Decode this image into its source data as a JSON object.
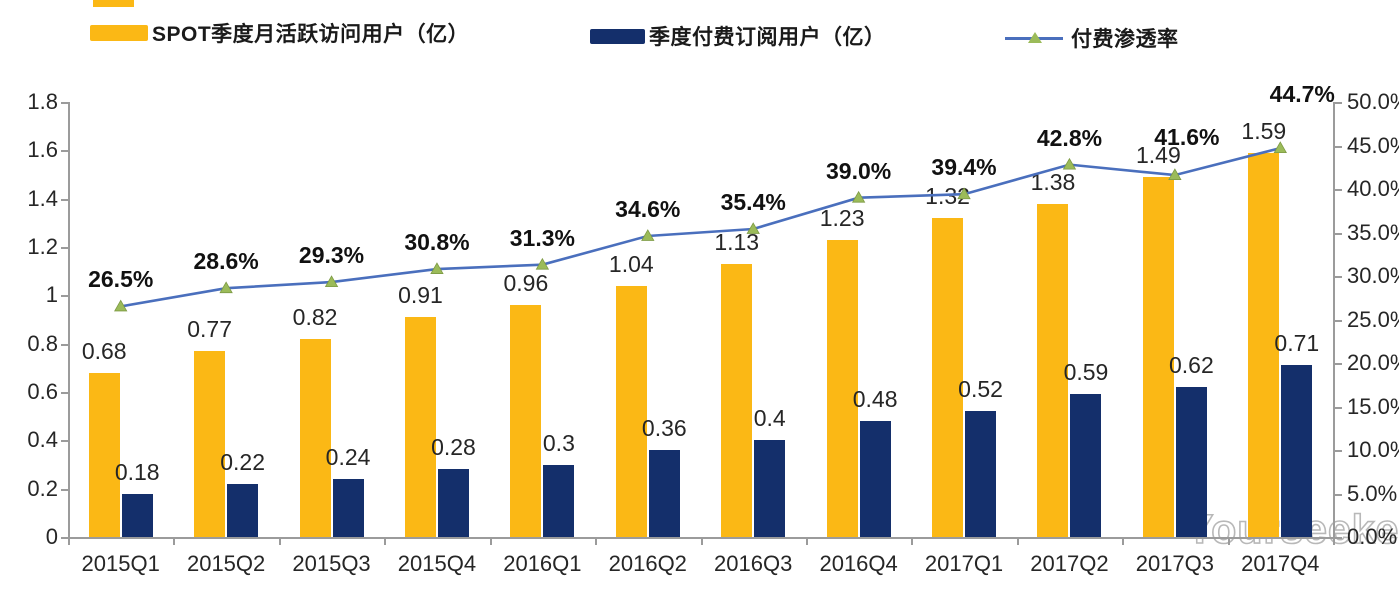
{
  "legend": {
    "items": [
      {
        "label": "SPOT季度月活跃访问用户（亿）",
        "type": "bar",
        "color": "#FBB815"
      },
      {
        "label": "季度付费订阅用户（亿）",
        "type": "bar",
        "color": "#142F6B"
      },
      {
        "label": "付费渗透率",
        "type": "line",
        "color": "#4A6FBD",
        "marker_color": "#9BBB59"
      }
    ]
  },
  "chart_data": {
    "type": "combo",
    "categories": [
      "2015Q1",
      "2015Q2",
      "2015Q3",
      "2015Q4",
      "2016Q1",
      "2016Q2",
      "2016Q3",
      "2016Q4",
      "2017Q1",
      "2017Q2",
      "2017Q3",
      "2017Q4"
    ],
    "series": [
      {
        "name": "SPOT季度月活跃访问用户（亿）",
        "type": "bar",
        "axis": "left",
        "color": "#FBB815",
        "values": [
          0.68,
          0.77,
          0.82,
          0.91,
          0.96,
          1.04,
          1.13,
          1.23,
          1.32,
          1.38,
          1.49,
          1.59
        ],
        "labels": [
          "0.68",
          "0.77",
          "0.82",
          "0.91",
          "0.96",
          "1.04",
          "1.13",
          "1.23",
          "1.32",
          "1.38",
          "1.49",
          "1.59"
        ]
      },
      {
        "name": "季度付费订阅用户（亿）",
        "type": "bar",
        "axis": "left",
        "color": "#142F6B",
        "values": [
          0.18,
          0.22,
          0.24,
          0.28,
          0.3,
          0.36,
          0.4,
          0.48,
          0.52,
          0.59,
          0.62,
          0.71
        ],
        "labels": [
          "0.18",
          "0.22",
          "0.24",
          "0.28",
          "0.3",
          "0.36",
          "0.4",
          "0.48",
          "0.52",
          "0.59",
          "0.62",
          "0.71"
        ]
      },
      {
        "name": "付费渗透率",
        "type": "line",
        "axis": "right",
        "color": "#4A6FBD",
        "marker": "triangle",
        "marker_color": "#9BBB59",
        "values": [
          26.5,
          28.6,
          29.3,
          30.8,
          31.3,
          34.6,
          35.4,
          39.0,
          39.4,
          42.8,
          41.6,
          44.7
        ],
        "labels": [
          "26.5%",
          "28.6%",
          "29.3%",
          "30.8%",
          "31.3%",
          "34.6%",
          "35.4%",
          "39.0%",
          "39.4%",
          "42.8%",
          "41.6%",
          "44.7%"
        ]
      }
    ],
    "left_axis": {
      "min": 0,
      "max": 1.8,
      "step": 0.2,
      "tick_labels": [
        "0",
        "0.2",
        "0.4",
        "0.6",
        "0.8",
        "1",
        "1.2",
        "1.4",
        "1.6",
        "1.8"
      ]
    },
    "right_axis": {
      "min": 0,
      "max": 50,
      "step": 5,
      "tick_labels": [
        "0.0%",
        "5.0%",
        "10.0%",
        "15.0%",
        "20.0%",
        "25.0%",
        "30.0%",
        "35.0%",
        "40.0%",
        "45.0%",
        "50.0%"
      ]
    },
    "grid": false,
    "legend_position": "top",
    "title": ""
  },
  "watermark": {
    "text": "Yourseeker",
    "icon": "wechat-chat-bubbles-icon"
  }
}
